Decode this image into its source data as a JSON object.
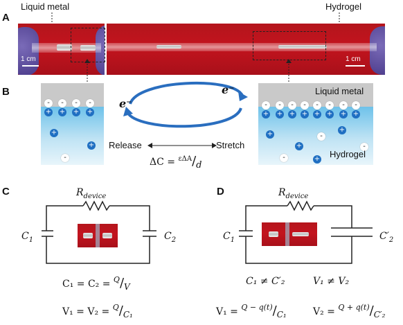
{
  "panels": {
    "a": "A",
    "b": "B",
    "c": "C",
    "d": "D"
  },
  "panel_a": {
    "liquid_metal_label": "Liquid metal",
    "hydrogel_label": "Hydrogel",
    "scale_left": "1 cm",
    "scale_right": "1 cm"
  },
  "panel_b": {
    "electron_left": "e⁻",
    "electron_right": "e⁻",
    "liquid_metal_label": "Liquid metal",
    "hydrogel_label": "Hydrogel",
    "release_label": "Release",
    "stretch_label": "Stretch",
    "delta_c_lhs": "ΔC = ",
    "delta_c_num": "εΔA",
    "delta_c_den": "d",
    "neg_sign": "-",
    "pos_sign": "+"
  },
  "panel_c": {
    "resistor_label": "R",
    "resistor_sub": "device",
    "c1_label": "C",
    "c1_sub": "1",
    "c2_label": "C",
    "c2_sub": "2",
    "eq1_lhs": "C₁ = C₂ = ",
    "eq1_num": "Q",
    "eq1_den": "V",
    "eq2_lhs": "V₁ = V₂ = ",
    "eq2_num": "Q",
    "eq2_den": "C₁"
  },
  "panel_d": {
    "resistor_label": "R",
    "resistor_sub": "device",
    "c1_label": "C",
    "c1_sub": "1",
    "c2_label": "C′",
    "c2_sub": "2",
    "neq1": "C₁ ≠ C′₂",
    "neq2": "V₁ ≠ V₂",
    "eq_v1_lhs": "V₁ = ",
    "eq_v1_num": "Q − q(t)",
    "eq_v1_den": "C₁",
    "eq_v2_lhs": "V₂ = ",
    "eq_v2_num": "Q + q(t)",
    "eq_v2_den": "C′₂"
  },
  "colors": {
    "photo_red": "#b4151c",
    "glove": "#5b4aa0",
    "ion_blue": "#1f6fc2",
    "gel_blue": "#6ec2ea",
    "metal_gray": "#c9c9c9",
    "arrow_blue": "#2a6ebf"
  }
}
